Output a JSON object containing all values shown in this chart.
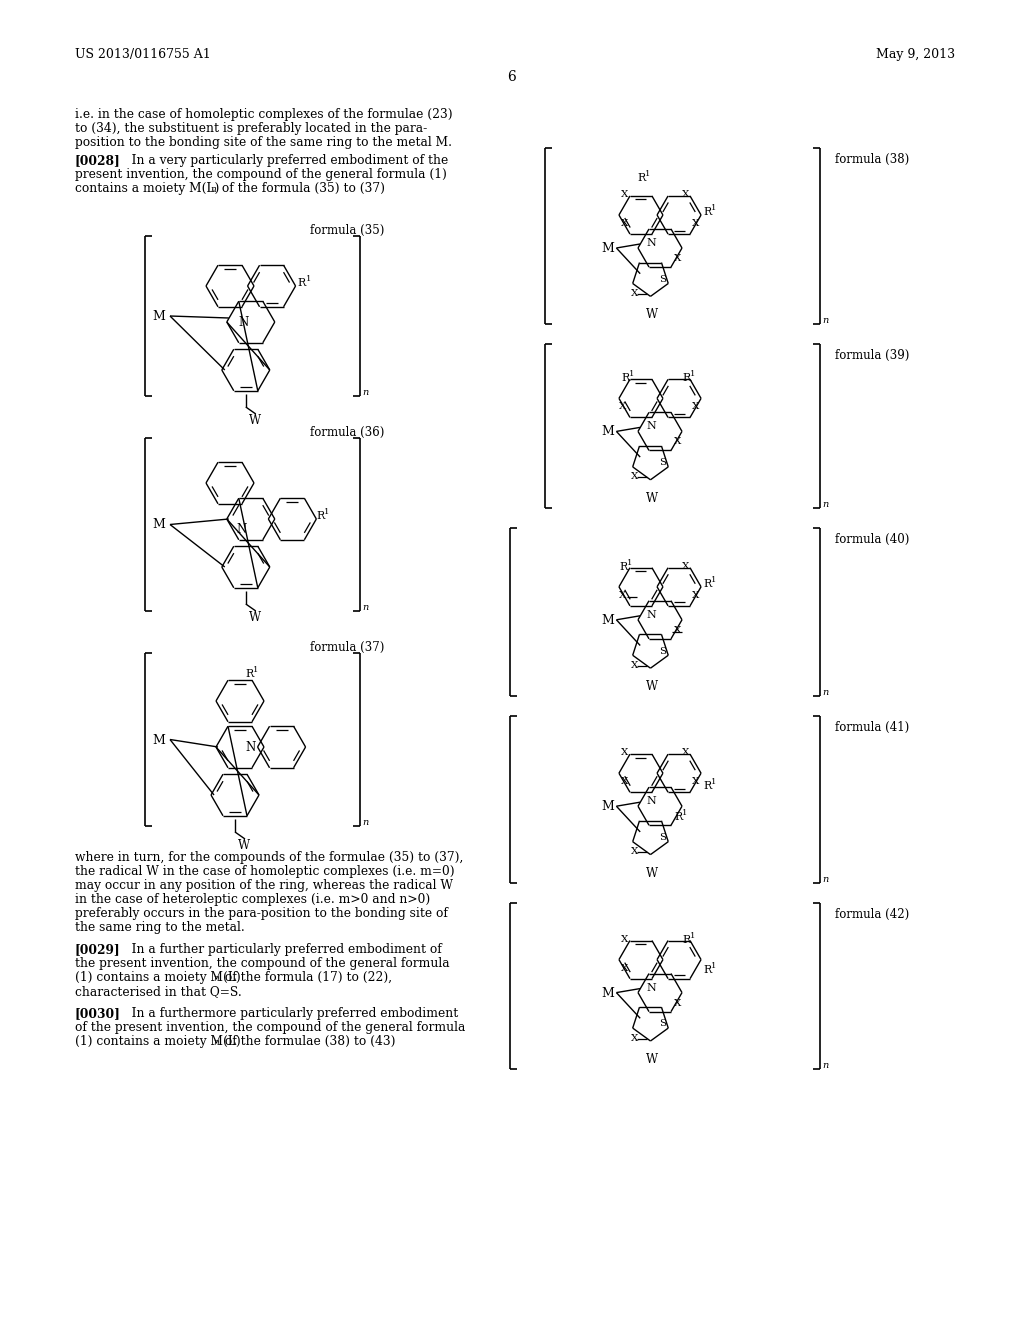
{
  "background_color": "#ffffff",
  "header_left": "US 2013/0116755 A1",
  "header_right": "May 9, 2013",
  "page_number": "6",
  "para1_lines": [
    "i.e. in the case of homoleptic complexes of the formulae (23)",
    "to (34), the substituent is preferably located in the para-",
    "position to the bonding site of the same ring to the metal M."
  ],
  "para2_bold": "[0028]",
  "para2_lines": [
    "[0028]    In a very particularly preferred embodiment of the",
    "present invention, the compound of the general formula (1)",
    "contains a moiety M(L)n of the formula (35) to (37)"
  ],
  "formula35_label": "formula (35)",
  "formula36_label": "formula (36)",
  "formula37_label": "formula (37)",
  "formula38_label": "formula (38)",
  "formula39_label": "formula (39)",
  "formula40_label": "formula (40)",
  "formula41_label": "formula (41)",
  "formula42_label": "formula (42)",
  "para3_lines": [
    "where in turn, for the compounds of the formulae (35) to (37),",
    "the radical W in the case of homoleptic complexes (i.e. m=0)",
    "may occur in any position of the ring, whereas the radical W",
    "in the case of heteroleptic complexes (i.e. m>0 and n>0)",
    "preferably occurs in the para-position to the bonding site of",
    "the same ring to the metal."
  ],
  "para4_bold": "[0029]",
  "para4_lines": [
    "[0029]    In a further particularly preferred embodiment of",
    "the present invention, the compound of the general formula",
    "(1) contains a moiety M(L)n of the formula (17) to (22),",
    "characterised in that Q=S."
  ],
  "para5_bold": "[0030]",
  "para5_lines": [
    "[0030]    In a furthermore particularly preferred embodiment",
    "of the present invention, the compound of the general formula",
    "(1) contains a moiety M(L)n of the formulae (38) to (43)"
  ]
}
